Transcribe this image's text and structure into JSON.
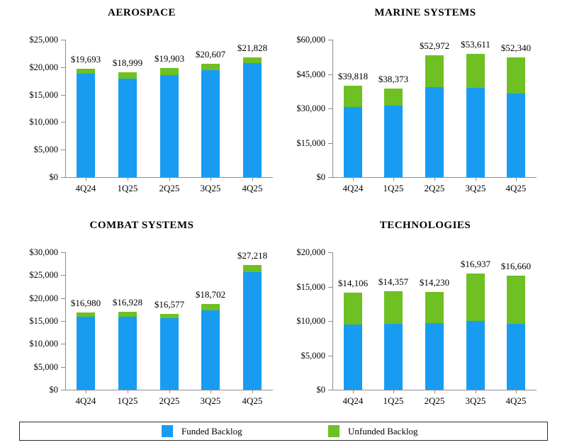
{
  "page": {
    "background": "#ffffff",
    "description": "Quarterly funded and unfunded backlog by segment, dollars in millions"
  },
  "colors": {
    "funded": "#189cf2",
    "unfunded": "#6ec023",
    "axis": "#8c8c8c",
    "text": "#000000"
  },
  "legend": {
    "items": [
      {
        "name": "funded",
        "label": "Funded Backlog",
        "color": "#189cf2"
      },
      {
        "name": "unfunded",
        "label": "Unfunded Backlog",
        "color": "#6ec023"
      }
    ]
  },
  "chart_data": [
    {
      "type": "bar",
      "stacked": true,
      "title": "AEROSPACE",
      "categories": [
        "4Q24",
        "1Q25",
        "2Q25",
        "3Q25",
        "4Q25"
      ],
      "series": [
        {
          "name": "Funded Backlog",
          "color": "#189cf2",
          "values": [
            18800,
            17900,
            18600,
            19500,
            20800
          ]
        },
        {
          "name": "Unfunded Backlog",
          "color": "#6ec023",
          "values": [
            893,
            1099,
            1303,
            1107,
            1028
          ]
        }
      ],
      "totals": [
        19693,
        18999,
        19903,
        20607,
        21828
      ],
      "total_labels": [
        "$19,693",
        "$18,999",
        "$19,903",
        "$20,607",
        "$21,828"
      ],
      "ylim": [
        0,
        25000
      ],
      "ystep": 5000,
      "ytick_labels": [
        "$0",
        "$5,000",
        "$10,000",
        "$15,000",
        "$20,000",
        "$25,000"
      ],
      "grid": false,
      "legend_position": "shared-bottom"
    },
    {
      "type": "bar",
      "stacked": true,
      "title": "MARINE SYSTEMS",
      "categories": [
        "4Q24",
        "1Q25",
        "2Q25",
        "3Q25",
        "4Q25"
      ],
      "series": [
        {
          "name": "Funded Backlog",
          "color": "#189cf2",
          "values": [
            30500,
            31100,
            39200,
            38900,
            36500
          ]
        },
        {
          "name": "Unfunded Backlog",
          "color": "#6ec023",
          "values": [
            9318,
            7273,
            13772,
            14711,
            15840
          ]
        }
      ],
      "totals": [
        39818,
        38373,
        52972,
        53611,
        52340
      ],
      "total_labels": [
        "$39,818",
        "$38,373",
        "$52,972",
        "$53,611",
        "$52,340"
      ],
      "ylim": [
        0,
        60000
      ],
      "ystep": 15000,
      "ytick_labels": [
        "$0",
        "$15,000",
        "$30,000",
        "$45,000",
        "$60,000"
      ],
      "grid": false,
      "legend_position": "shared-bottom"
    },
    {
      "type": "bar",
      "stacked": true,
      "title": "COMBAT SYSTEMS",
      "categories": [
        "4Q24",
        "1Q25",
        "2Q25",
        "3Q25",
        "4Q25"
      ],
      "series": [
        {
          "name": "Funded Backlog",
          "color": "#189cf2",
          "values": [
            16000,
            15900,
            15650,
            17350,
            25700
          ]
        },
        {
          "name": "Unfunded Backlog",
          "color": "#6ec023",
          "values": [
            980,
            1028,
            927,
            1352,
            1518
          ]
        }
      ],
      "totals": [
        16980,
        16928,
        16577,
        18702,
        27218
      ],
      "total_labels": [
        "$16,980",
        "$16,928",
        "$16,577",
        "$18,702",
        "$27,218"
      ],
      "ylim": [
        0,
        30000
      ],
      "ystep": 5000,
      "ytick_labels": [
        "$0",
        "$5,000",
        "$10,000",
        "$15,000",
        "$20,000",
        "$25,000",
        "$30,000"
      ],
      "grid": false,
      "legend_position": "shared-bottom"
    },
    {
      "type": "bar",
      "stacked": true,
      "title": "TECHNOLOGIES",
      "categories": [
        "4Q24",
        "1Q25",
        "2Q25",
        "3Q25",
        "4Q25"
      ],
      "series": [
        {
          "name": "Funded Backlog",
          "color": "#189cf2",
          "values": [
            9500,
            9600,
            9700,
            10000,
            9600
          ]
        },
        {
          "name": "Unfunded Backlog",
          "color": "#6ec023",
          "values": [
            4606,
            4757,
            4530,
            6937,
            7060
          ]
        }
      ],
      "totals": [
        14106,
        14357,
        14230,
        16937,
        16660
      ],
      "total_labels": [
        "$14,106",
        "$14,357",
        "$14,230",
        "$16,937",
        "$16,660"
      ],
      "ylim": [
        0,
        20000
      ],
      "ystep": 5000,
      "ytick_labels": [
        "$0",
        "$5,000",
        "$10,000",
        "$15,000",
        "$20,000"
      ],
      "grid": false,
      "legend_position": "shared-bottom"
    }
  ]
}
